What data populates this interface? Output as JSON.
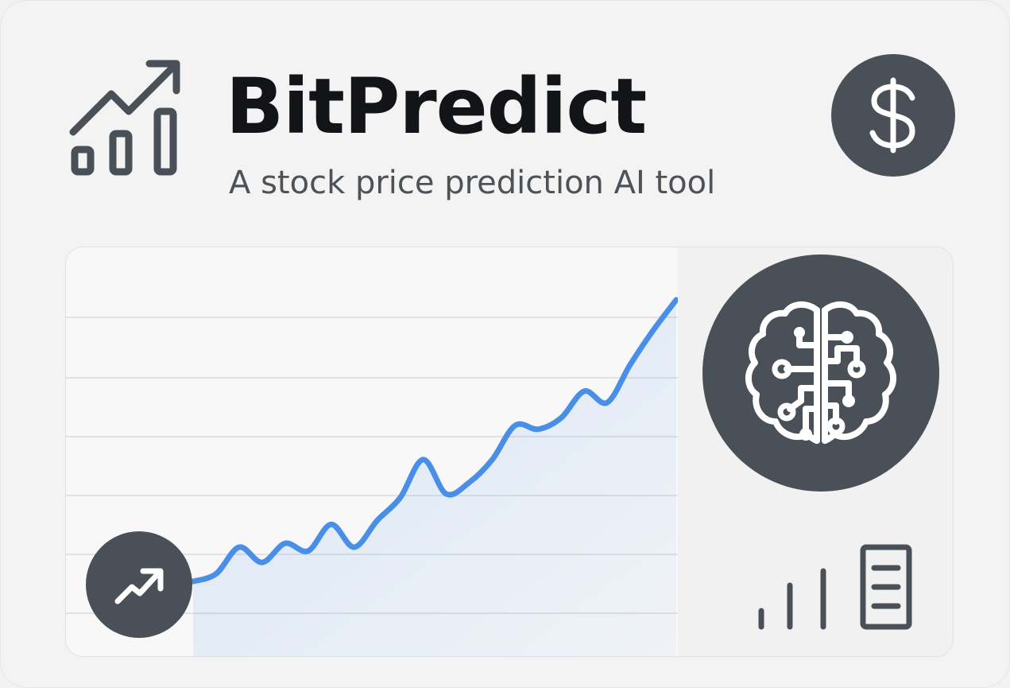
{
  "header": {
    "title": "BitPredict",
    "subtitle": "A stock price prediction AI tool",
    "logo_icon": "trend-chart-icon"
  },
  "actions": {
    "currency_icon": "dollar-icon",
    "trend_icon": "trending-up-arrow-icon"
  },
  "ai_badge": {
    "icon": "ai-brain-circuit-icon"
  },
  "side_decor": {
    "icon": "signal-bars-icon"
  },
  "colors": {
    "accent": "#4a8fe7",
    "dark": "#4a5057",
    "title": "#121417",
    "subtitle": "#4d5257"
  },
  "chart_data": {
    "type": "line",
    "series": [
      {
        "values": [
          1.0,
          1.2,
          1.9,
          1.5,
          2.0,
          1.8,
          2.5,
          1.9,
          2.6,
          3.2,
          4.2,
          3.3,
          3.6,
          4.2,
          5.1,
          5.0,
          5.3,
          6.0,
          5.7,
          6.7,
          7.6,
          8.4
        ]
      }
    ],
    "area_fill": true,
    "grid": true
  }
}
